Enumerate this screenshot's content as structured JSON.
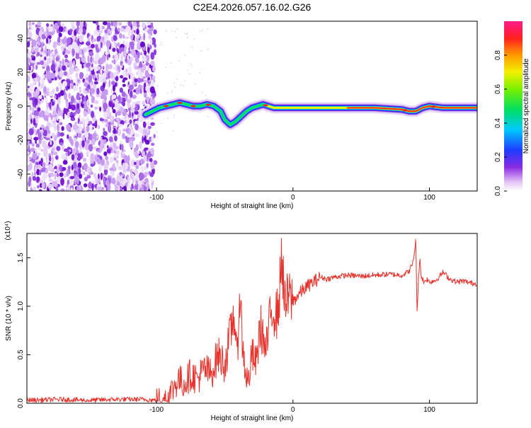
{
  "title": "C2E4.2026.057.16.02.G26",
  "chart_data": [
    {
      "type": "heatmap",
      "xlabel": "Height of straight line (km)",
      "ylabel": "Frequency (Hz)",
      "xlim": [
        -195,
        135
      ],
      "ylim": [
        -50,
        50
      ],
      "xticks": [
        -100,
        0,
        100
      ],
      "xtick_labels": [
        "-100",
        "0",
        "100"
      ],
      "yticks": [
        -40,
        -20,
        0,
        20,
        40
      ],
      "ytick_labels": [
        "-40",
        "-20",
        "0",
        "20",
        "40"
      ],
      "noise_region_x": [
        -195,
        -101
      ],
      "signal_track": {
        "x": [
          -108,
          -103,
          -98,
          -93,
          -88,
          -83,
          -78,
          -73,
          -68,
          -63,
          -58,
          -53,
          -50,
          -46,
          -42,
          -38,
          -34,
          -30,
          -26,
          -22,
          -18,
          -14,
          -10,
          -6,
          -2,
          0,
          10,
          20,
          40,
          60,
          80,
          85,
          90,
          95,
          100,
          110,
          120,
          135
        ],
        "y": [
          -5,
          -3,
          -1,
          0,
          1,
          2,
          1,
          0,
          0,
          1,
          0,
          -3,
          -8,
          -11,
          -9,
          -6,
          -3,
          -1,
          0,
          1,
          0,
          -1,
          -1,
          -1,
          -1,
          -1,
          -1,
          -1,
          -1,
          -1,
          -2,
          -3,
          -3,
          -1,
          0,
          -1,
          -1,
          -1
        ]
      },
      "colorbar": {
        "label": "Normalized spectral amplitude",
        "range": [
          0,
          1
        ],
        "ticks": [
          0.0,
          0.2,
          0.4,
          0.6,
          0.8
        ],
        "tick_labels": [
          "0.0",
          "0.2",
          "0.4",
          "0.6",
          "0.8"
        ]
      }
    },
    {
      "type": "line",
      "xlabel": "Height of straight line (km)",
      "ylabel": "SNR (10 * v/v)",
      "y_multiplier": "(x10⁴)",
      "xlim": [
        -195,
        135
      ],
      "ylim": [
        0,
        17500
      ],
      "xticks": [
        -100,
        0,
        100
      ],
      "xtick_labels": [
        "-100",
        "0",
        "100"
      ],
      "yticks": [
        0,
        5000,
        10000,
        15000
      ],
      "ytick_labels": [
        "0.0",
        "0.5",
        "1.0",
        "1.5"
      ],
      "color": "#e8312a",
      "series": [
        {
          "name": "SNR",
          "x": [
            -195,
            -170,
            -150,
            -130,
            -110,
            -100,
            -92,
            -88,
            -84,
            -80,
            -75,
            -70,
            -65,
            -60,
            -55,
            -50,
            -46,
            -43,
            -41,
            -39,
            -37,
            -35,
            -33,
            -30,
            -27,
            -24,
            -22,
            -20,
            -17,
            -15,
            -12,
            -10,
            -8,
            -6,
            -3,
            0,
            3,
            6,
            10,
            15,
            20,
            25,
            30,
            40,
            50,
            60,
            70,
            80,
            85,
            88,
            90,
            91,
            92,
            93,
            94,
            96,
            98,
            100,
            105,
            110,
            115,
            120,
            125,
            130,
            135
          ],
          "y": [
            300,
            400,
            300,
            400,
            400,
            300,
            600,
            1500,
            2500,
            2000,
            3000,
            2500,
            3500,
            3000,
            5000,
            4000,
            7000,
            9500,
            4000,
            12000,
            6000,
            3500,
            2000,
            5000,
            4000,
            8000,
            7000,
            5000,
            8500,
            10000,
            9000,
            11000,
            15500,
            10000,
            11000,
            10500,
            11000,
            11500,
            12000,
            12500,
            13000,
            12800,
            13000,
            13200,
            13100,
            13200,
            13300,
            13200,
            13600,
            14500,
            16800,
            9000,
            13000,
            15000,
            13000,
            12500,
            12800,
            12500,
            12700,
            13500,
            12800,
            12500,
            12600,
            12400,
            12300
          ]
        }
      ]
    }
  ]
}
